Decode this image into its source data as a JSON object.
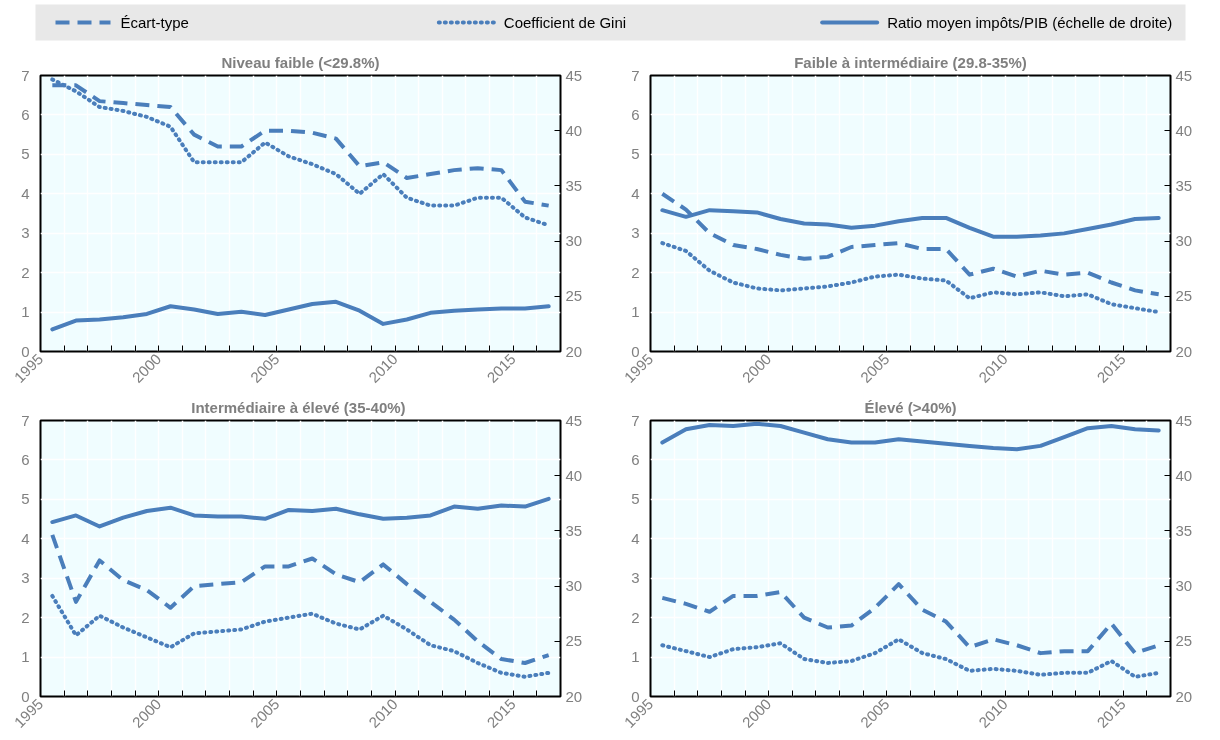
{
  "chart_data": [
    {
      "type": "line",
      "title": "Niveau faible (<29.8%)",
      "legend": "top",
      "grid": true,
      "x": [
        1995.5,
        1996.5,
        1997.5,
        1998.5,
        1999.5,
        2000.5,
        2001.5,
        2002.5,
        2003.5,
        2004.5,
        2005.5,
        2006.5,
        2007.5,
        2008.5,
        2009.5,
        2010.5,
        2011.5,
        2012.5,
        2013.5,
        2014.5,
        2015.5,
        2016.5
      ],
      "xlim": [
        1995,
        2017
      ],
      "xticks": [
        1995,
        {
          "value": 1996,
          "label": null
        },
        {
          "value": 1997,
          "label": null
        },
        {
          "value": 1998,
          "label": null
        },
        {
          "value": 1999,
          "label": null
        },
        2000,
        {
          "value": 2001,
          "label": null
        },
        {
          "value": 2002,
          "label": null
        },
        {
          "value": 2003,
          "label": null
        },
        {
          "value": 2004,
          "label": null
        },
        2005,
        {
          "value": 2006,
          "label": null
        },
        {
          "value": 2007,
          "label": null
        },
        {
          "value": 2008,
          "label": null
        },
        {
          "value": 2009,
          "label": null
        },
        2010,
        {
          "value": 2011,
          "label": null
        },
        {
          "value": 2012,
          "label": null
        },
        {
          "value": 2013,
          "label": null
        },
        {
          "value": 2014,
          "label": null
        },
        2015,
        {
          "value": 2016,
          "label": null
        }
      ],
      "ylim": [
        0,
        7
      ],
      "yticks": [
        0,
        1,
        2,
        3,
        4,
        5,
        6,
        7
      ],
      "y2lim": [
        20,
        45
      ],
      "y2ticks": [
        20,
        25,
        30,
        35,
        40,
        45
      ],
      "series": [
        {
          "name": "Écart-type",
          "color": "#4a7ebb",
          "line_style": "dashed",
          "values": [
            6.75,
            6.75,
            6.35,
            6.3,
            6.25,
            6.2,
            5.5,
            5.2,
            5.2,
            5.6,
            5.6,
            5.55,
            5.4,
            4.7,
            4.8,
            4.4,
            4.5,
            4.6,
            4.65,
            4.6,
            3.8,
            3.7
          ]
        },
        {
          "name": "Coefficient de Gini",
          "color": "#4a7ebb",
          "line_style": "dotted",
          "values": [
            6.9,
            6.6,
            6.2,
            6.1,
            5.95,
            5.7,
            4.8,
            4.8,
            4.8,
            5.3,
            4.95,
            4.75,
            4.5,
            4.0,
            4.5,
            3.9,
            3.7,
            3.7,
            3.9,
            3.9,
            3.4,
            3.2
          ]
        },
        {
          "name": "Ratio moyen impôts/PIB (échelle de droite)",
          "color": "#4a7ebb",
          "line_style": "solid",
          "axis": "y2",
          "values": [
            22.0,
            22.8,
            22.9,
            23.1,
            23.4,
            24.1,
            23.8,
            23.4,
            23.6,
            23.3,
            23.8,
            24.3,
            24.5,
            23.7,
            22.5,
            22.9,
            23.5,
            23.7,
            23.8,
            23.9,
            23.9,
            24.1
          ]
        }
      ]
    },
    {
      "type": "line",
      "title": "Faible à intermédiaire (29.8-35%)",
      "grid": true,
      "x": [
        1995.5,
        1996.5,
        1997.5,
        1998.5,
        1999.5,
        2000.5,
        2001.5,
        2002.5,
        2003.5,
        2004.5,
        2005.5,
        2006.5,
        2007.5,
        2008.5,
        2009.5,
        2010.5,
        2011.5,
        2012.5,
        2013.5,
        2014.5,
        2015.5,
        2016.5
      ],
      "xlim": [
        1995,
        2017
      ],
      "xticks": [
        1995,
        {
          "value": 1996,
          "label": null
        },
        {
          "value": 1997,
          "label": null
        },
        {
          "value": 1998,
          "label": null
        },
        {
          "value": 1999,
          "label": null
        },
        2000,
        {
          "value": 2001,
          "label": null
        },
        {
          "value": 2002,
          "label": null
        },
        {
          "value": 2003,
          "label": null
        },
        {
          "value": 2004,
          "label": null
        },
        2005,
        {
          "value": 2006,
          "label": null
        },
        {
          "value": 2007,
          "label": null
        },
        {
          "value": 2008,
          "label": null
        },
        {
          "value": 2009,
          "label": null
        },
        2010,
        {
          "value": 2011,
          "label": null
        },
        {
          "value": 2012,
          "label": null
        },
        {
          "value": 2013,
          "label": null
        },
        {
          "value": 2014,
          "label": null
        },
        2015,
        {
          "value": 2016,
          "label": null
        }
      ],
      "ylim": [
        0,
        7
      ],
      "yticks": [
        0,
        1,
        2,
        3,
        4,
        5,
        6,
        7
      ],
      "y2lim": [
        20,
        45
      ],
      "y2ticks": [
        20,
        25,
        30,
        35,
        40,
        45
      ],
      "series": [
        {
          "color": "#4a7ebb",
          "line_style": "dashed",
          "values": [
            4.0,
            3.6,
            3.0,
            2.7,
            2.6,
            2.45,
            2.35,
            2.4,
            2.65,
            2.7,
            2.75,
            2.6,
            2.6,
            1.95,
            2.1,
            1.9,
            2.05,
            1.95,
            2.0,
            1.75,
            1.55,
            1.45
          ]
        },
        {
          "color": "#4a7ebb",
          "line_style": "dotted",
          "values": [
            2.75,
            2.55,
            2.05,
            1.75,
            1.6,
            1.55,
            1.6,
            1.65,
            1.75,
            1.9,
            1.95,
            1.85,
            1.8,
            1.35,
            1.5,
            1.45,
            1.5,
            1.4,
            1.45,
            1.2,
            1.1,
            1.0
          ]
        },
        {
          "color": "#4a7ebb",
          "line_style": "solid",
          "axis": "y2",
          "values": [
            32.8,
            32.2,
            32.8,
            32.7,
            32.6,
            32.0,
            31.6,
            31.5,
            31.2,
            31.4,
            31.8,
            32.1,
            32.1,
            31.2,
            30.4,
            30.4,
            30.5,
            30.7,
            31.1,
            31.5,
            32.0,
            32.1
          ]
        }
      ]
    },
    {
      "type": "line",
      "title": "Intermédiaire à élevé  (35-40%)",
      "grid": true,
      "x": [
        1995.5,
        1996.5,
        1997.5,
        1998.5,
        1999.5,
        2000.5,
        2001.5,
        2002.5,
        2003.5,
        2004.5,
        2005.5,
        2006.5,
        2007.5,
        2008.5,
        2009.5,
        2010.5,
        2011.5,
        2012.5,
        2013.5,
        2014.5,
        2015.5,
        2016.5
      ],
      "xlim": [
        1995,
        2017
      ],
      "xticks": [
        1995,
        {
          "value": 1996,
          "label": null
        },
        {
          "value": 1997,
          "label": null
        },
        {
          "value": 1998,
          "label": null
        },
        {
          "value": 1999,
          "label": null
        },
        2000,
        {
          "value": 2001,
          "label": null
        },
        {
          "value": 2002,
          "label": null
        },
        {
          "value": 2003,
          "label": null
        },
        {
          "value": 2004,
          "label": null
        },
        2005,
        {
          "value": 2006,
          "label": null
        },
        {
          "value": 2007,
          "label": null
        },
        {
          "value": 2008,
          "label": null
        },
        {
          "value": 2009,
          "label": null
        },
        2010,
        {
          "value": 2011,
          "label": null
        },
        {
          "value": 2012,
          "label": null
        },
        {
          "value": 2013,
          "label": null
        },
        {
          "value": 2014,
          "label": null
        },
        2015,
        {
          "value": 2016,
          "label": null
        }
      ],
      "ylim": [
        0,
        7
      ],
      "yticks": [
        0,
        1,
        2,
        3,
        4,
        5,
        6,
        7
      ],
      "y2lim": [
        20,
        45
      ],
      "y2ticks": [
        20,
        25,
        30,
        35,
        40,
        45
      ],
      "series": [
        {
          "color": "#4a7ebb",
          "line_style": "dashed",
          "values": [
            4.1,
            2.4,
            3.45,
            2.95,
            2.7,
            2.25,
            2.8,
            2.85,
            2.9,
            3.3,
            3.3,
            3.5,
            3.1,
            2.9,
            3.35,
            2.85,
            2.4,
            1.95,
            1.4,
            0.95,
            0.85,
            1.05
          ]
        },
        {
          "color": "#4a7ebb",
          "line_style": "dotted",
          "values": [
            2.55,
            1.55,
            2.05,
            1.75,
            1.5,
            1.25,
            1.6,
            1.65,
            1.7,
            1.9,
            2.0,
            2.1,
            1.85,
            1.7,
            2.05,
            1.7,
            1.3,
            1.15,
            0.85,
            0.6,
            0.5,
            0.6
          ]
        },
        {
          "color": "#4a7ebb",
          "line_style": "solid",
          "axis": "y2",
          "values": [
            35.8,
            36.4,
            35.4,
            36.2,
            36.8,
            37.1,
            36.4,
            36.3,
            36.3,
            36.1,
            36.9,
            36.8,
            37.0,
            36.5,
            36.1,
            36.2,
            36.4,
            37.2,
            37.0,
            37.3,
            37.2,
            37.9
          ]
        }
      ]
    },
    {
      "type": "line",
      "title": "Élevé (>40%)",
      "grid": true,
      "x": [
        1995.5,
        1996.5,
        1997.5,
        1998.5,
        1999.5,
        2000.5,
        2001.5,
        2002.5,
        2003.5,
        2004.5,
        2005.5,
        2006.5,
        2007.5,
        2008.5,
        2009.5,
        2010.5,
        2011.5,
        2012.5,
        2013.5,
        2014.5,
        2015.5,
        2016.5
      ],
      "xlim": [
        1995,
        2017
      ],
      "xticks": [
        1995,
        {
          "value": 1996,
          "label": null
        },
        {
          "value": 1997,
          "label": null
        },
        {
          "value": 1998,
          "label": null
        },
        {
          "value": 1999,
          "label": null
        },
        2000,
        {
          "value": 2001,
          "label": null
        },
        {
          "value": 2002,
          "label": null
        },
        {
          "value": 2003,
          "label": null
        },
        {
          "value": 2004,
          "label": null
        },
        2005,
        {
          "value": 2006,
          "label": null
        },
        {
          "value": 2007,
          "label": null
        },
        {
          "value": 2008,
          "label": null
        },
        {
          "value": 2009,
          "label": null
        },
        2010,
        {
          "value": 2011,
          "label": null
        },
        {
          "value": 2012,
          "label": null
        },
        {
          "value": 2013,
          "label": null
        },
        {
          "value": 2014,
          "label": null
        },
        2015,
        {
          "value": 2016,
          "label": null
        }
      ],
      "ylim": [
        0,
        7
      ],
      "yticks": [
        0,
        1,
        2,
        3,
        4,
        5,
        6,
        7
      ],
      "y2lim": [
        20,
        45
      ],
      "y2ticks": [
        20,
        25,
        30,
        35,
        40,
        45
      ],
      "series": [
        {
          "color": "#4a7ebb",
          "line_style": "dashed",
          "values": [
            2.5,
            2.35,
            2.15,
            2.55,
            2.55,
            2.65,
            2.0,
            1.75,
            1.8,
            2.25,
            2.85,
            2.2,
            1.9,
            1.25,
            1.45,
            1.3,
            1.1,
            1.15,
            1.15,
            1.85,
            1.1,
            1.3
          ]
        },
        {
          "color": "#4a7ebb",
          "line_style": "dotted",
          "values": [
            1.3,
            1.15,
            1.0,
            1.2,
            1.25,
            1.35,
            0.95,
            0.85,
            0.9,
            1.1,
            1.45,
            1.1,
            0.95,
            0.65,
            0.7,
            0.65,
            0.55,
            0.6,
            0.6,
            0.9,
            0.5,
            0.6
          ]
        },
        {
          "color": "#4a7ebb",
          "line_style": "solid",
          "axis": "y2",
          "values": [
            43.0,
            44.2,
            44.6,
            44.5,
            44.7,
            44.5,
            43.9,
            43.3,
            43.0,
            43.0,
            43.3,
            43.1,
            42.9,
            42.7,
            42.5,
            42.4,
            42.7,
            43.5,
            44.3,
            44.5,
            44.2,
            44.1
          ]
        }
      ]
    }
  ]
}
